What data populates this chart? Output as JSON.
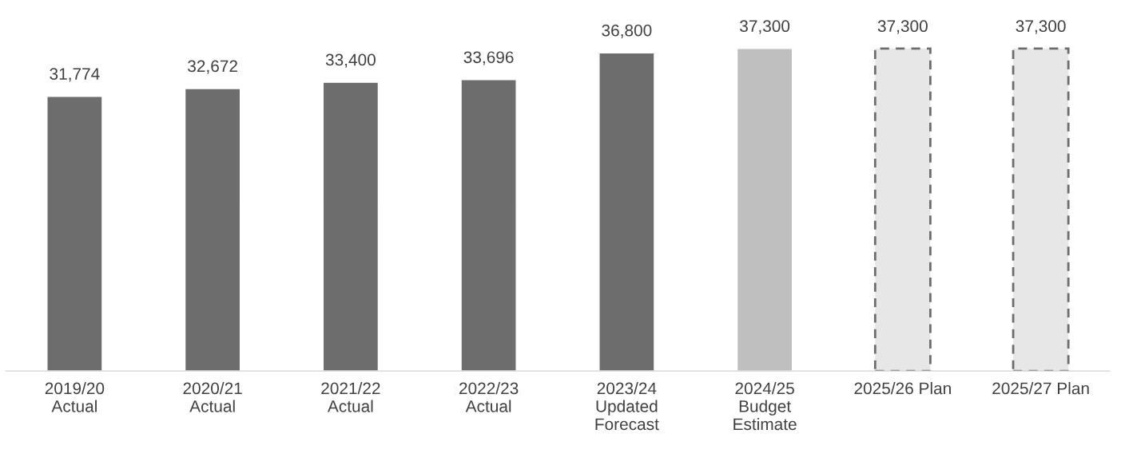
{
  "chart_data": {
    "type": "bar",
    "categories": [
      "2019/20\nActual",
      "2020/21\nActual",
      "2021/22\nActual",
      "2022/23\nActual",
      "2023/24\nUpdated\nForecast",
      "2024/25\nBudget\nEstimate",
      "2025/26 Plan",
      "2025/27 Plan"
    ],
    "series": [
      {
        "color": "#6d6d6d",
        "values": [
          31774,
          32672,
          33400,
          33696,
          36800,
          null,
          null,
          null
        ],
        "value_labels": [
          "31,774",
          "32,672",
          "33,400",
          "33,696",
          "36,800",
          null,
          null,
          null
        ]
      },
      {
        "color": "#bfbfbf",
        "values": [
          null,
          null,
          null,
          null,
          null,
          37300,
          null,
          null
        ],
        "value_labels": [
          null,
          null,
          null,
          null,
          null,
          "37,300",
          null,
          null
        ]
      },
      {
        "color": "#e7e7e7",
        "line_style": "dashed",
        "values": [
          null,
          null,
          null,
          null,
          null,
          null,
          37300,
          37300
        ],
        "value_labels": [
          null,
          null,
          null,
          null,
          null,
          null,
          "37,300",
          "37,300"
        ]
      }
    ],
    "grid": false,
    "legend": false
  }
}
